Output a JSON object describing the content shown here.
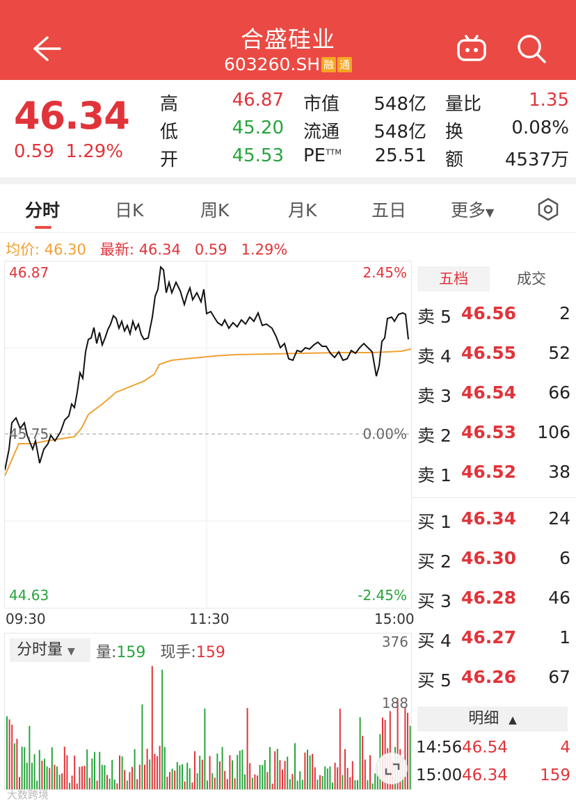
{
  "header": {
    "title": "合盛硅业",
    "code": "603260.SH",
    "tag1": "融",
    "tag2": "通"
  },
  "quote": {
    "price": "46.34",
    "change": "0.59",
    "pct": "1.29%",
    "high_label": "高",
    "high": "46.87",
    "low_label": "低",
    "low": "45.20",
    "open_label": "开",
    "open": "45.53",
    "mcap_label": "市值",
    "mcap": "548亿",
    "float_label": "流通",
    "float": "548亿",
    "pe_label": "PE",
    "pe_sup": "TTM",
    "pe": "25.51",
    "vr_label": "量比",
    "vr": "1.35",
    "turn_label": "换",
    "turn": "0.08%",
    "amt_label": "额",
    "amt": "4537万"
  },
  "tabs": [
    "分时",
    "日K",
    "周K",
    "月K",
    "五日",
    "更多"
  ],
  "avgline": {
    "avg_label": "均价:",
    "avg": "46.30",
    "latest_label": "最新:",
    "latest": "46.34",
    "chg": "0.59",
    "pct": "1.29%"
  },
  "chart": {
    "top": "46.87",
    "mid": "45.75",
    "bottom": "44.63",
    "pct_top": "2.45%",
    "pct_mid": "0.00%",
    "pct_bottom": "-2.45%",
    "t0": "09:30",
    "t1": "11:30",
    "t2": "15:00"
  },
  "volume": {
    "select": "分时量",
    "vol_label": "量:",
    "vol": "159",
    "hand_label": "现手:",
    "hand": "159",
    "max": "376",
    "half": "188"
  },
  "book": {
    "tab1": "五档",
    "tab2": "成交",
    "asks": [
      {
        "n": "卖 5",
        "p": "46.56",
        "v": "2"
      },
      {
        "n": "卖 4",
        "p": "46.55",
        "v": "52"
      },
      {
        "n": "卖 3",
        "p": "46.54",
        "v": "66"
      },
      {
        "n": "卖 2",
        "p": "46.53",
        "v": "106"
      },
      {
        "n": "卖 1",
        "p": "46.52",
        "v": "38"
      }
    ],
    "bids": [
      {
        "n": "买 1",
        "p": "46.34",
        "v": "24"
      },
      {
        "n": "买 2",
        "p": "46.30",
        "v": "6"
      },
      {
        "n": "买 3",
        "p": "46.28",
        "v": "46"
      },
      {
        "n": "买 4",
        "p": "46.27",
        "v": "1"
      },
      {
        "n": "买 5",
        "p": "46.26",
        "v": "67"
      }
    ],
    "detail": "明细",
    "ticks": [
      {
        "t": "14:56",
        "p": "46.54",
        "v": "4"
      },
      {
        "t": "15:00",
        "p": "46.34",
        "v": "159"
      }
    ]
  },
  "watermark": "大数跨境",
  "colors": {
    "brand": "#ea4a43",
    "up": "#e0343a",
    "down": "#26a43b",
    "avg": "#f0a030"
  }
}
